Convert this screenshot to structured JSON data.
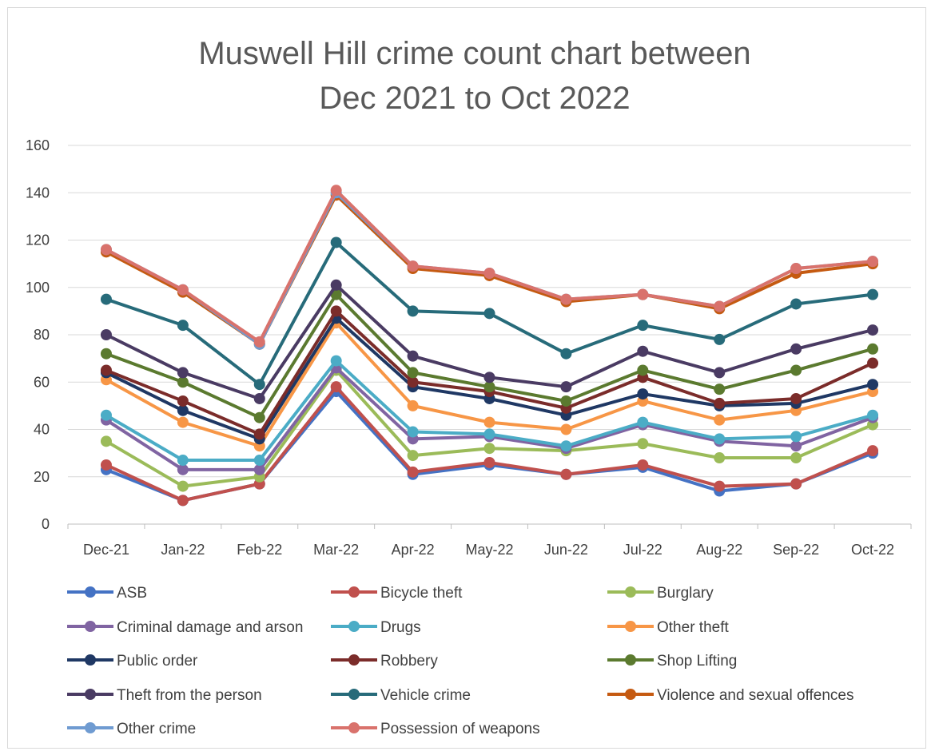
{
  "chart_data": {
    "type": "line",
    "title_lines": [
      "Muswell Hill crime count chart between",
      "Dec 2021 to Oct 2022"
    ],
    "xlabel": "",
    "ylabel": "",
    "ylim": [
      0,
      160
    ],
    "yticks": [
      "0",
      "20",
      "40",
      "60",
      "80",
      "100",
      "120",
      "140",
      "160"
    ],
    "grid": true,
    "legend_position": "bottom",
    "categories": [
      "Dec-21",
      "Jan-22",
      "Feb-22",
      "Mar-22",
      "Apr-22",
      "May-22",
      "Jun-22",
      "Jul-22",
      "Aug-22",
      "Sep-22",
      "Oct-22"
    ],
    "series": [
      {
        "name": "ASB",
        "color": "#4472c4",
        "values": [
          23,
          10,
          17,
          56,
          21,
          25,
          21,
          24,
          14,
          17,
          30
        ]
      },
      {
        "name": "Bicycle theft",
        "color": "#c0504d",
        "values": [
          25,
          10,
          17,
          58,
          22,
          26,
          21,
          25,
          16,
          17,
          31
        ]
      },
      {
        "name": "Burglary",
        "color": "#9bbb59",
        "values": [
          35,
          16,
          20,
          65,
          29,
          32,
          31,
          34,
          28,
          28,
          42
        ]
      },
      {
        "name": "Criminal damage and arson",
        "color": "#8064a2",
        "values": [
          44,
          23,
          23,
          66,
          36,
          37,
          32,
          42,
          35,
          33,
          45
        ]
      },
      {
        "name": "Drugs",
        "color": "#4bacc6",
        "values": [
          46,
          27,
          27,
          69,
          39,
          38,
          33,
          43,
          36,
          37,
          46
        ]
      },
      {
        "name": "Other theft",
        "color": "#f79646",
        "values": [
          61,
          43,
          33,
          85,
          50,
          43,
          40,
          52,
          44,
          48,
          56
        ]
      },
      {
        "name": "Public order",
        "color": "#1f3864",
        "values": [
          64,
          48,
          36,
          87,
          58,
          53,
          46,
          55,
          50,
          51,
          59
        ]
      },
      {
        "name": "Robbery",
        "color": "#7b2c2a",
        "values": [
          65,
          52,
          38,
          90,
          60,
          56,
          49,
          62,
          51,
          53,
          68
        ]
      },
      {
        "name": "Shop Lifting",
        "color": "#5b7a2f",
        "values": [
          72,
          60,
          45,
          97,
          64,
          58,
          52,
          65,
          57,
          65,
          74
        ]
      },
      {
        "name": "Theft from the person",
        "color": "#4a3b63",
        "values": [
          80,
          64,
          53,
          101,
          71,
          62,
          58,
          73,
          64,
          74,
          82
        ]
      },
      {
        "name": "Vehicle crime",
        "color": "#276b7a",
        "values": [
          95,
          84,
          59,
          119,
          90,
          89,
          72,
          84,
          78,
          93,
          97
        ]
      },
      {
        "name": "Violence and sexual offences",
        "color": "#c55a11",
        "values": [
          115,
          98,
          76,
          139,
          108,
          105,
          94,
          97,
          91,
          106,
          110
        ]
      },
      {
        "name": "Other crime",
        "color": "#6f9bd1",
        "values": [
          116,
          99,
          76,
          140,
          109,
          106,
          95,
          97,
          92,
          108,
          111
        ]
      },
      {
        "name": "Possession of weapons",
        "color": "#d9726c",
        "values": [
          116,
          99,
          77,
          141,
          109,
          106,
          95,
          97,
          92,
          108,
          111
        ]
      }
    ]
  }
}
